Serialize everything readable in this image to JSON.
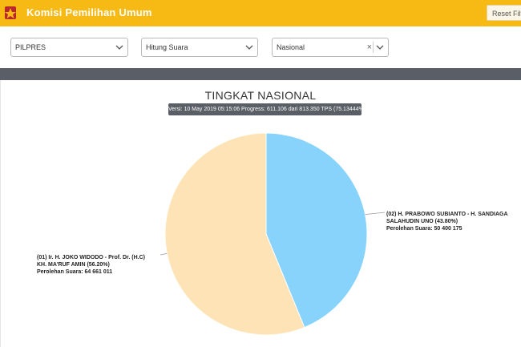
{
  "header": {
    "app_title": "Komisi Pemilihan Umum",
    "reset_label": "Reset Filte",
    "logo_icon": "kpu-logo-icon",
    "bar_color": "#f7b913"
  },
  "filters": {
    "election": "PILPRES",
    "mode": "Hitung Suara",
    "region": "Nasional",
    "clear_symbol": "×"
  },
  "chart_title": "TINGKAT NASIONAL",
  "version_text": "Versi: 10 May 2019 05:15:06 Progress: 611.106 dari 813.350 TPS (75.13444%)",
  "chart_data": {
    "type": "pie",
    "title": "TINGKAT NASIONAL",
    "slices": [
      {
        "label": "(02) H. PRABOWO SUBIANTO - H. SANDIAGA SALAHUDIN UNO (43.80%)",
        "line1": "(02) H. PRABOWO SUBIANTO - H. SANDIAGA",
        "line2": "SALAHUDIN UNO (43.80%)",
        "votes_text": "Perolehan Suara: 50 400 175",
        "percent": 43.8,
        "votes": 50400175,
        "color": "#87d3fb"
      },
      {
        "label": "(01) Ir. H. JOKO WIDODO - Prof. Dr. (H.C) KH. MA'RUF AMIN (56.20%)",
        "line1": "(01) Ir. H. JOKO WIDODO - Prof. Dr. (H.C)",
        "line2": "KH. MA'RUF AMIN (56.20%)",
        "votes_text": "Perolehan Suara: 64 661 011",
        "percent": 56.2,
        "votes": 64661011,
        "color": "#fde3b5"
      }
    ]
  }
}
